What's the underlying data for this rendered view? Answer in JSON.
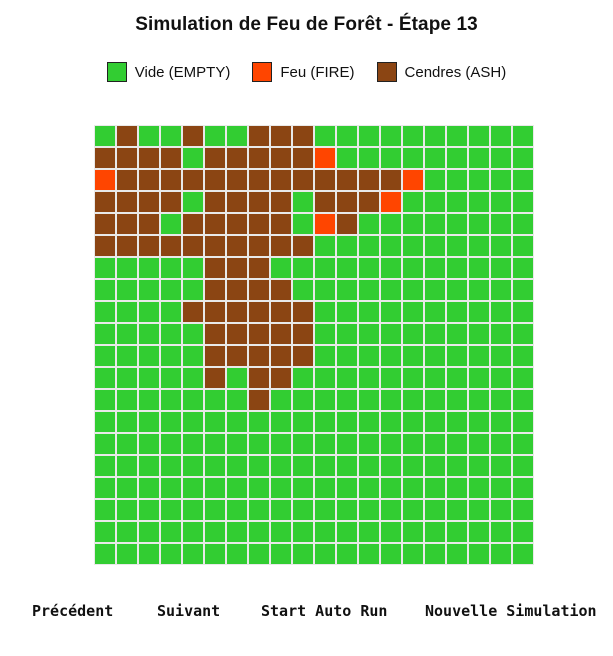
{
  "title": "Simulation de Feu de Forêt - Étape 13",
  "legend": [
    {
      "label": "Vide (EMPTY)",
      "color": "#32cd32"
    },
    {
      "label": "Feu (FIRE)",
      "color": "#ff4500"
    },
    {
      "label": "Cendres (ASH)",
      "color": "#8b4513"
    }
  ],
  "grid": {
    "columns": 20,
    "rows": 20,
    "state_codes": {
      "E": "EMPTY",
      "F": "FIRE",
      "A": "ASH"
    },
    "cells": [
      "EAEEAEEAAAEEEEEEEEEE",
      "AAAAEAAAAAFEEEEEEEEE",
      "FAAAAAAAAAAAAAFEEEEE",
      "AAAAEAAAAEAAAFEEEEEE",
      "AAAEAAAAAEFAEEEEEEEE",
      "AAAAAAAAAAEEEEEEEEEE",
      "EEEEEAAAEEEEEEEEEEEE",
      "EEEEEAAAAEEEEEEEEEEE",
      "EEEEAAAAAAEEEEEEEEEE",
      "EEEEEAAAAAEEEEEEEEEE",
      "EEEEEAAAAAEEEEEEEEEE",
      "EEEEEAEAAEEEEEEEEEEE",
      "EEEEEEEAEEEEEEEEEEEE",
      "EEEEEEEEEEEEEEEEEEEE",
      "EEEEEEEEEEEEEEEEEEEE",
      "EEEEEEEEEEEEEEEEEEEE",
      "EEEEEEEEEEEEEEEEEEEE",
      "EEEEEEEEEEEEEEEEEEEE",
      "EEEEEEEEEEEEEEEEEEEE",
      "EEEEEEEEEEEEEEEEEEEE"
    ]
  },
  "controls": {
    "previous_label": "Précédent",
    "next_label": "Suivant",
    "auto_run_label": "Start Auto Run",
    "new_simulation_label": "Nouvelle Simulation"
  }
}
